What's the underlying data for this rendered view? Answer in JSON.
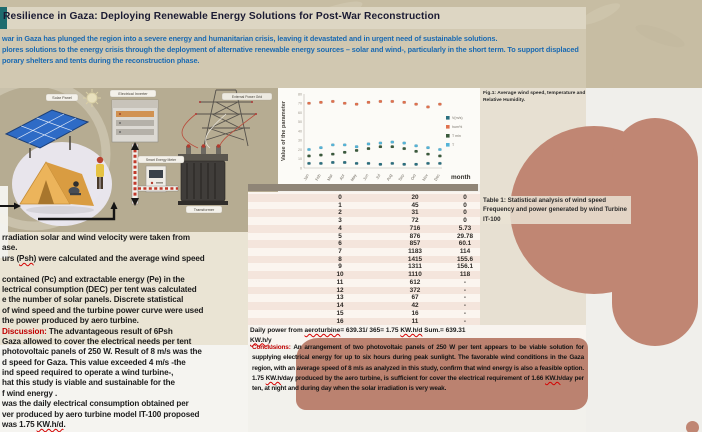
{
  "poster": {
    "title": "Resilience in Gaza: Deploying Renewable Energy Solutions for Post-War Reconstruction",
    "abstract_lines": [
      "war in Gaza has plunged the region into a severe energy and humanitarian crisis, leaving it devastated and in urgent need of sustainable solutions.",
      "plores solutions to the energy crisis through the deployment of alternative renewable energy sources – solar and wind-, particularly in the short term. To support displaced",
      "porary shelters and tents during the reconstruction phase."
    ],
    "fig1_caption": "Fig.1: Average wind speed, temperature and Relative Humidity.",
    "table1_caption": "Table 1: Statistical analysis of wind speed Frequency and power generated by wind Turbine IT-100"
  },
  "diagram_labels": {
    "solar_panel": "Solar Panel",
    "inverter": "Electrical Inverter",
    "power_grid": "External Power Grid",
    "smart_meter": "Smart Energy Meter",
    "transformer": "Transformer"
  },
  "chart_data": {
    "type": "scatter",
    "x": [
      "Jan",
      "Feb",
      "Mar",
      "Apr",
      "May",
      "Jun",
      "Jul",
      "Aug",
      "Sep",
      "Oct",
      "Nov",
      "Dec"
    ],
    "series": [
      {
        "name": "V(m/s)",
        "color": "#2a6f7f",
        "values": [
          5,
          5,
          6,
          6,
          5,
          5,
          4,
          5,
          4,
          4,
          5,
          5
        ]
      },
      {
        "name": "hum%",
        "color": "#e0714e",
        "values": [
          70,
          71,
          72,
          70,
          69,
          71,
          72,
          72,
          71,
          69,
          66,
          69
        ]
      },
      {
        "name": "T min",
        "color": "#3a5a3c",
        "values": [
          13,
          14,
          15,
          17,
          19,
          21,
          23,
          23,
          21,
          18,
          15,
          13
        ]
      },
      {
        "name": "T",
        "color": "#54b4d8",
        "values": [
          20,
          22,
          25,
          25,
          23,
          26,
          27,
          28,
          27,
          24,
          22,
          20
        ]
      }
    ],
    "title": "Fig.1: Average wind speed, temperature and Relative Humidity.",
    "xlabel": "month",
    "ylabel": "Value of the parameter",
    "ylim": [
      0,
      80
    ],
    "yticks": [
      0,
      10,
      20,
      30,
      40,
      50,
      60,
      70,
      80
    ],
    "legend_position": "right",
    "grid": false
  },
  "table1_rows": [
    [
      "0",
      "20",
      "0"
    ],
    [
      "1",
      "45",
      "0"
    ],
    [
      "2",
      "31",
      "0"
    ],
    [
      "3",
      "72",
      "0"
    ],
    [
      "4",
      "716",
      "5.73"
    ],
    [
      "5",
      "876",
      "29.78"
    ],
    [
      "6",
      "857",
      "60.1"
    ],
    [
      "7",
      "1183",
      "114"
    ],
    [
      "8",
      "1415",
      "155.6"
    ],
    [
      "9",
      "1311",
      "156.1"
    ],
    [
      "10",
      "1110",
      "118"
    ],
    [
      "11",
      "612",
      "-"
    ],
    [
      "12",
      "372",
      "-"
    ],
    [
      "13",
      "67",
      "-"
    ],
    [
      "14",
      "42",
      "-"
    ],
    [
      "15",
      "16",
      "-"
    ],
    [
      "16",
      "11",
      "-"
    ]
  ],
  "daily_power": {
    "line1": [
      {
        "t": "Daily power from "
      },
      {
        "t": "aeroturbine",
        "u": true
      },
      {
        "t": "=  639.31/ 365= 1.75 "
      },
      {
        "t": "KW.h/d",
        "u": true
      },
      {
        "t": "     Sum.= 639.31 "
      }
    ],
    "line2": [
      {
        "t": "KW.h/y",
        "u": true
      }
    ]
  },
  "left_column_lines": [
    [
      {
        "t": "rradiation solar and wind velocity were taken from"
      }
    ],
    [
      {
        "t": "ase."
      }
    ],
    [
      {
        "t": "urs ("
      },
      {
        "t": "Psh",
        "u": true
      },
      {
        "t": ") were calculated and the average wind speed"
      }
    ],
    [],
    [
      {
        "t": "contained (Pc) and extractable energy (Pe) in the"
      }
    ],
    [
      {
        "t": "lectrical consumption (DEC) per tent was calculated"
      }
    ],
    [
      {
        "t": "e the number of solar panels. Discrete statistical"
      }
    ],
    [
      {
        "t": "of wind speed  and the turbine power curve were used"
      }
    ],
    [
      {
        "t": "the power produced by aero turbine."
      }
    ],
    [
      {
        "t": "Discussion:",
        "c": "red"
      },
      {
        "t": " The advantageous result of 6Psh"
      }
    ],
    [
      {
        "t": "Gaza allowed to cover the electrical needs per tent"
      }
    ],
    [
      {
        "t": "photovoltaic panels of 250 W. Result of 8 m/s was the"
      }
    ],
    [
      {
        "t": "d speed for  Gaza.  This  value exceeded 4 m/s -the"
      }
    ],
    [
      {
        "t": "ind speed required to operate a wind turbine-,"
      }
    ],
    [
      {
        "t": "hat this study is viable and sustainable for the"
      }
    ],
    [
      {
        "t": "f wind energy ."
      }
    ],
    [
      {
        "t": "was  the daily electrical consumption obtained per"
      }
    ],
    [
      {
        "t": "ver  produced by aero turbine model  IT-100 proposed"
      }
    ],
    [
      {
        "t": "was 1.75 "
      },
      {
        "t": "KW.h/d",
        "u": true
      },
      {
        "t": "."
      }
    ]
  ],
  "conclusions": {
    "label": "Conclusions:",
    "segments": [
      {
        "t": " An arrangement of two  photovoltaic panels of 250 W per tent appears to be viable solution for supplying electrical energy for up to  six hours during peak sunlight. The favorable wind conditions in the Gaza region, with an average speed of 8 m/s as analyzed in this study, confirm that wind energy is also a feasible option. 1.75 "
      },
      {
        "t": "KW.h",
        "u": true
      },
      {
        "t": "/day produced by the aero turbine, is sufficient for cover the electrical requirement of 1.66 "
      },
      {
        "t": "KW.h",
        "u": true
      },
      {
        "t": "/day per ten, at night and during day when the solar irradiation is very weak."
      }
    ]
  },
  "colors": {
    "accent_red": "#c00000",
    "blue_text": "#1a6ab2",
    "salmon_blob": "#c08673",
    "tan_band": "#c7bda3",
    "teal_logo": "#1e6b6e"
  }
}
